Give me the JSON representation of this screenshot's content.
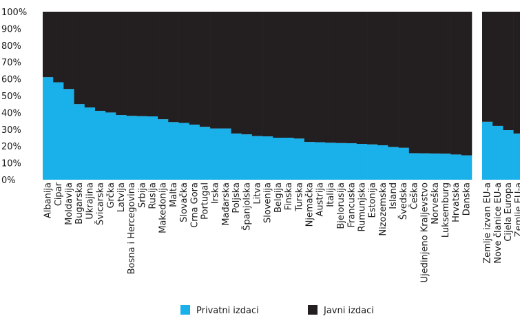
{
  "chart_data": {
    "type": "bar",
    "stacked": true,
    "ylim": [
      0,
      100
    ],
    "y_ticks": [
      "0%",
      "10%",
      "20%",
      "30%",
      "40%",
      "50%",
      "60%",
      "70%",
      "80%",
      "90%",
      "100%"
    ],
    "grid": false,
    "legend_position": "bottom",
    "categories": [
      "Albanija",
      "Cipar",
      "Moldavija",
      "Bugarska",
      "Ukrajina",
      "Švicarska",
      "Grčka",
      "Latvija",
      "Bosna i Hercegovina",
      "Srbija",
      "Rusija",
      "Makedonija",
      "Malta",
      "Slovačka",
      "Crna Gora",
      "Portugal",
      "Irska",
      "Mađarska",
      "Poljska",
      "Španjolska",
      "Litva",
      "Slovenija",
      "Belgija",
      "Finska",
      "Turska",
      "Njemačka",
      "Austrija",
      "Italija",
      "Bjelorusija",
      "Francuska",
      "Rumunjska",
      "Estonija",
      "Nizozemska",
      "Island",
      "Švedska",
      "Češka",
      "Ujedinjeno Kraljevstvo",
      "Norveška",
      "Luksemburg",
      "Hrvatska",
      "Danska"
    ],
    "series": [
      {
        "name": "Privatni izdaci",
        "color": "#1ab0ea",
        "values": [
          61,
          58,
          54,
          45,
          43,
          41,
          40,
          38.5,
          38,
          37.8,
          37.7,
          36,
          34.3,
          33.8,
          32.8,
          31.5,
          30.5,
          30.5,
          27.5,
          27,
          26,
          25.8,
          25,
          25,
          24.5,
          22.5,
          22.3,
          22,
          21.8,
          21.7,
          21.3,
          21,
          20.5,
          19.5,
          19,
          15.8,
          15.7,
          15.6,
          15.5,
          15,
          14.5
        ]
      },
      {
        "name": "Javni izdaci",
        "color": "#231f20",
        "values": [
          39,
          42,
          46,
          55,
          57,
          59,
          60,
          61.5,
          62,
          62.2,
          62.3,
          64,
          65.7,
          66.2,
          67.2,
          68.5,
          69.5,
          69.5,
          72.5,
          73,
          74,
          74.2,
          75,
          75,
          75.5,
          77.5,
          77.7,
          78,
          78.2,
          78.3,
          78.7,
          79,
          79.5,
          80.5,
          81,
          84.2,
          84.3,
          84.4,
          84.5,
          85,
          85.5
        ]
      }
    ],
    "group2": {
      "categories": [
        "Zemlje izvan EU-a",
        "Nove članice EU-a",
        "Cijela Europa",
        "Zemlje EU-a"
      ],
      "series": [
        {
          "name": "Privatni izdaci",
          "values": [
            34.5,
            32,
            29.5,
            27.5
          ]
        },
        {
          "name": "Javni izdaci",
          "values": [
            65.5,
            68,
            70.5,
            72.5
          ]
        }
      ]
    }
  }
}
